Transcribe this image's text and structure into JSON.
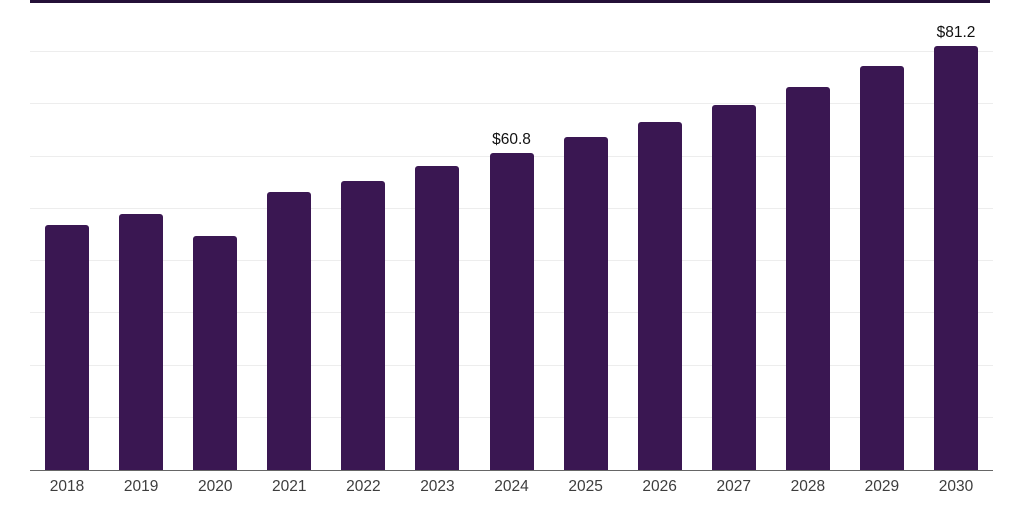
{
  "chart_data": {
    "type": "bar",
    "title": "",
    "xlabel": "",
    "ylabel": "",
    "categories": [
      "2018",
      "2019",
      "2020",
      "2021",
      "2022",
      "2023",
      "2024",
      "2025",
      "2026",
      "2027",
      "2028",
      "2029",
      "2030"
    ],
    "values": [
      47.0,
      49.0,
      44.8,
      53.3,
      55.4,
      58.2,
      60.8,
      63.8,
      66.6,
      69.9,
      73.4,
      77.4,
      81.2
    ],
    "data_labels": {
      "2024": "$60.8",
      "2030": "$81.2"
    },
    "ylim": [
      0,
      90
    ],
    "ytick_step": 10,
    "y_axis_labels_visible": false,
    "grid": "horizontal",
    "legend": "none",
    "colors": {
      "bar": "#3a1752",
      "top_rule": "#241038",
      "gridline": "#ededed",
      "axis_line": "#666666",
      "data_label": "#111111",
      "tick_label": "#3d3d3d",
      "background": "#ffffff"
    }
  }
}
